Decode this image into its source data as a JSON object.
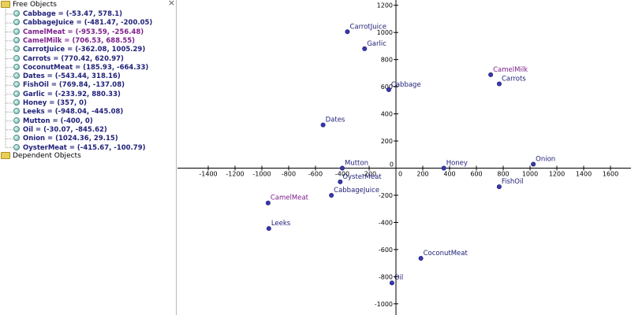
{
  "algebra_view": {
    "close_glyph": "×",
    "free_folder": "Free Objects",
    "dependent_folder": "Dependent Objects",
    "items": [
      {
        "name": "Cabbage",
        "text": "Cabbage = (-53.47, 578.1)",
        "x": -53.47,
        "y": 578.1,
        "color": "#21217a"
      },
      {
        "name": "CabbageJuice",
        "text": "CabbageJuice = (-481.47, -200.05)",
        "x": -481.47,
        "y": -200.05,
        "color": "#21217a"
      },
      {
        "name": "CamelMeat",
        "text": "CamelMeat = (-953.59, -256.48)",
        "x": -953.59,
        "y": -256.48,
        "color": "#7d1f8c"
      },
      {
        "name": "CamelMilk",
        "text": "CamelMilk = (706.53, 688.55)",
        "x": 706.53,
        "y": 688.55,
        "color": "#7d1f8c"
      },
      {
        "name": "CarrotJuice",
        "text": "CarrotJuice = (-362.08, 1005.29)",
        "x": -362.08,
        "y": 1005.29,
        "color": "#21217a"
      },
      {
        "name": "Carrots",
        "text": "Carrots = (770.42, 620.97)",
        "x": 770.42,
        "y": 620.97,
        "color": "#21217a"
      },
      {
        "name": "CoconutMeat",
        "text": "CoconutMeat = (185.93, -664.33)",
        "x": 185.93,
        "y": -664.33,
        "color": "#21217a"
      },
      {
        "name": "Dates",
        "text": "Dates = (-543.44, 318.16)",
        "x": -543.44,
        "y": 318.16,
        "color": "#21217a"
      },
      {
        "name": "FishOil",
        "text": "FishOil = (769.84, -137.08)",
        "x": 769.84,
        "y": -137.08,
        "color": "#21217a"
      },
      {
        "name": "Garlic",
        "text": "Garlic = (-233.92, 880.33)",
        "x": -233.92,
        "y": 880.33,
        "color": "#21217a"
      },
      {
        "name": "Honey",
        "text": "Honey = (357, 0)",
        "x": 357,
        "y": 0,
        "color": "#21217a"
      },
      {
        "name": "Leeks",
        "text": "Leeks = (-948.04, -445.08)",
        "x": -948.04,
        "y": -445.08,
        "color": "#21217a"
      },
      {
        "name": "Mutton",
        "text": "Mutton = (-400, 0)",
        "x": -400,
        "y": 0,
        "color": "#21217a"
      },
      {
        "name": "Oil",
        "text": "Oil = (-30.07, -845.62)",
        "x": -30.07,
        "y": -845.62,
        "color": "#21217a"
      },
      {
        "name": "Onion",
        "text": "Onion = (1024.36, 29.15)",
        "x": 1024.36,
        "y": 29.15,
        "color": "#21217a"
      },
      {
        "name": "OysterMeat",
        "text": "OysterMeat = (-415.67, -100.79)",
        "x": -415.67,
        "y": -100.79,
        "color": "#21217a"
      }
    ]
  },
  "graphics_view": {
    "x_ticks": [
      -1400,
      -1200,
      -1000,
      -800,
      -600,
      -400,
      -200,
      0,
      200,
      400,
      600,
      800,
      1000,
      1200,
      1400,
      1600
    ],
    "y_ticks": [
      1200,
      1000,
      800,
      600,
      400,
      200,
      0,
      -200,
      -400,
      -600,
      -800,
      -1000
    ],
    "x_range": [
      -1600,
      1750
    ],
    "y_range": [
      -1080,
      1270
    ],
    "axis_color": "#000000",
    "point_color": "#1f1f7a",
    "point_fill": "#3a3ab0"
  }
}
